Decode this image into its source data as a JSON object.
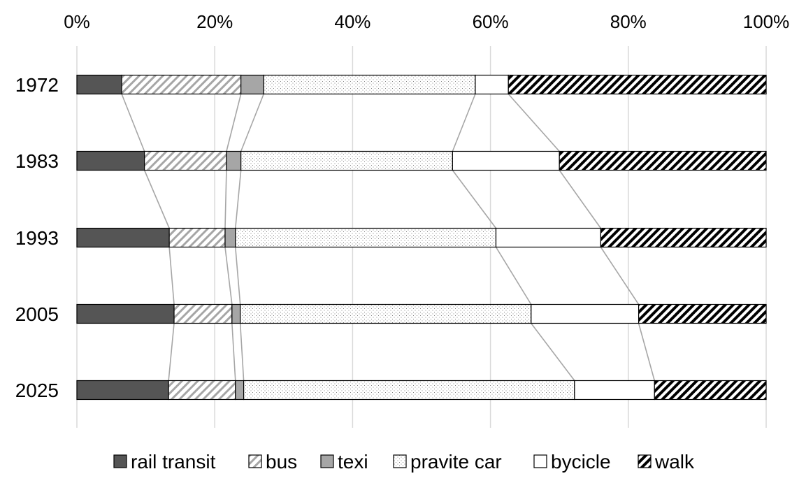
{
  "chart_data": {
    "type": "bar",
    "orientation": "horizontal",
    "stacked": "100%",
    "categories": [
      "1972",
      "1983",
      "1993",
      "2005",
      "2025"
    ],
    "x_ticks": [
      "0%",
      "20%",
      "40%",
      "60%",
      "80%",
      "100%"
    ],
    "xlim": [
      0,
      100
    ],
    "grid": "vertical",
    "legend_position": "bottom",
    "series_lines": true,
    "series": [
      {
        "name": "rail transit",
        "pattern": "solid-dark",
        "values": [
          6.5,
          9.8,
          13.4,
          14.1,
          13.3
        ]
      },
      {
        "name": "bus",
        "pattern": "diagonal-light",
        "values": [
          17.3,
          11.9,
          8.1,
          8.4,
          9.7
        ]
      },
      {
        "name": "texi",
        "pattern": "solid-mid",
        "values": [
          3.3,
          2.1,
          1.5,
          1.2,
          1.2
        ]
      },
      {
        "name": "pravite car",
        "pattern": "dots",
        "values": [
          30.7,
          30.7,
          37.8,
          42.2,
          48.0
        ]
      },
      {
        "name": "bycicle",
        "pattern": "white",
        "values": [
          4.8,
          15.5,
          15.2,
          15.6,
          11.6
        ]
      },
      {
        "name": "walk",
        "pattern": "diagonal-bold",
        "values": [
          37.4,
          30.0,
          24.0,
          18.5,
          16.2
        ]
      }
    ],
    "colors": {
      "rail": "#555555",
      "texi": "#a6a6a6",
      "grid": "#d9d9d9",
      "connector": "#a6a6a6",
      "bar_stroke": "#000000"
    }
  }
}
